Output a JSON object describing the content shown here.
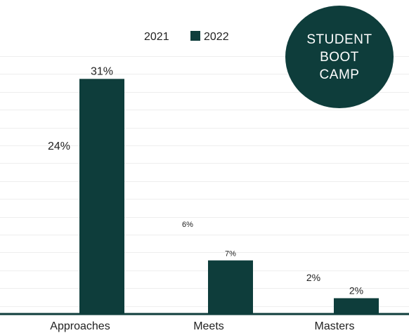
{
  "badge": {
    "text": "STUDENT BOOT CAMP",
    "color": "#0e3d3b"
  },
  "chart_data": {
    "type": "bar",
    "title": "",
    "xlabel": "",
    "ylabel": "",
    "categories": [
      "Approaches",
      "Meets",
      "Masters"
    ],
    "series": [
      {
        "name": "2021",
        "values": [
          24,
          6,
          2
        ],
        "value_labels": [
          "24%",
          "6%",
          "2%"
        ],
        "color": "#ffffff",
        "bar_visible": false
      },
      {
        "name": "2022",
        "values": [
          31,
          7,
          2
        ],
        "value_labels": [
          "31%",
          "7%",
          "2%"
        ],
        "color": "#0e3d3b"
      }
    ],
    "ylim": [
      0,
      34
    ],
    "grid": true,
    "legend_position": "top-center",
    "axis_color": "#0e3d3b",
    "grid_color": "#eeeeee"
  }
}
